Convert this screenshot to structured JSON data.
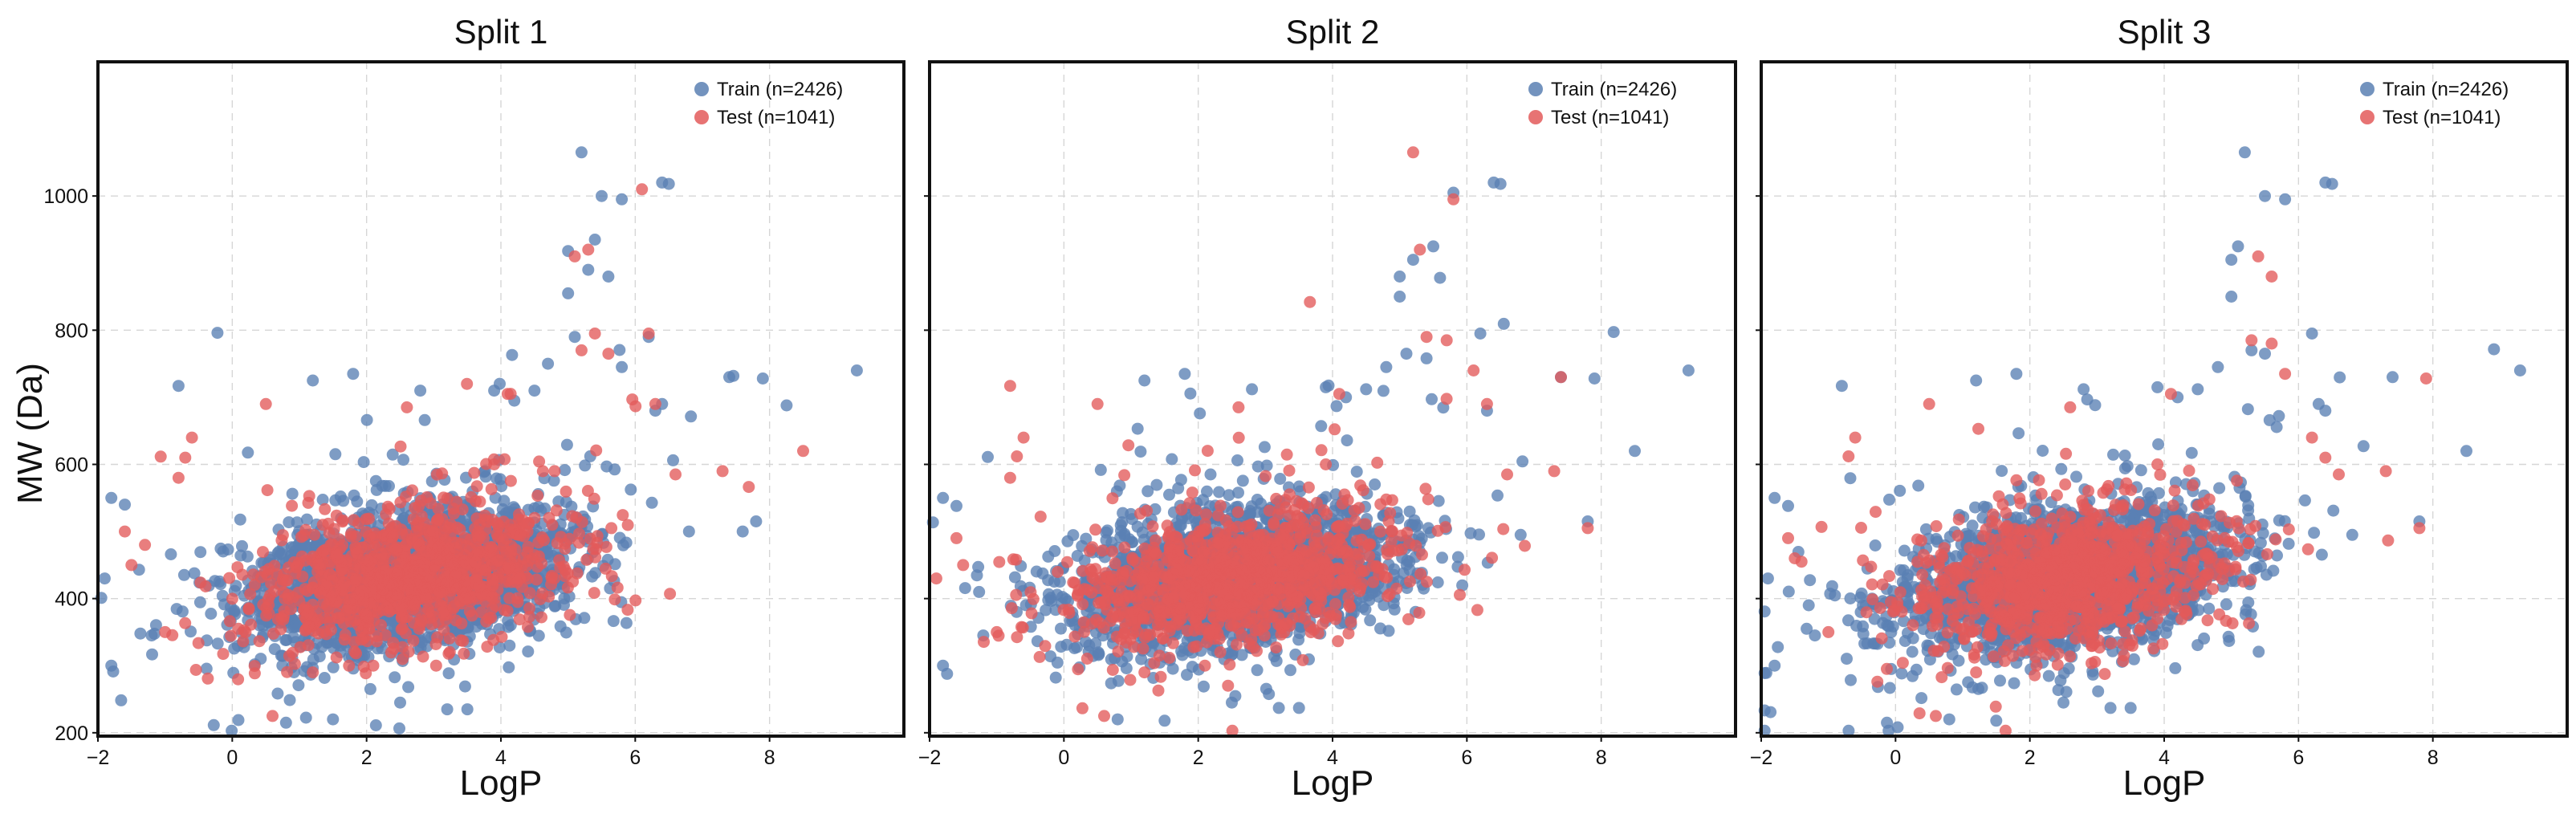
{
  "chart_data": {
    "type": "scatter",
    "figure_ylabel": "MW (Da)",
    "xlabel": "LogP",
    "xlim": [
      -2,
      10
    ],
    "ylim": [
      195,
      1200
    ],
    "xticks": [
      -2,
      0,
      2,
      4,
      6,
      8
    ],
    "yticks": [
      200,
      400,
      600,
      800,
      1000
    ],
    "grid": true,
    "legend_position": "top-right",
    "colors": {
      "Train": "#5a80b3",
      "Test": "#e35a5a"
    },
    "panels": [
      {
        "title": "Split 1",
        "series": [
          {
            "name": "Train (n=2426)",
            "key": "Train",
            "count": 2426,
            "seed": 11,
            "outliers": [
              [
                5.2,
                1065
              ],
              [
                6.4,
                1020
              ],
              [
                6.5,
                1018
              ],
              [
                5.5,
                1000
              ],
              [
                5.8,
                995
              ],
              [
                5.4,
                935
              ],
              [
                5.0,
                918
              ],
              [
                5.3,
                890
              ],
              [
                5.6,
                880
              ],
              [
                5.0,
                855
              ],
              [
                5.1,
                790
              ],
              [
                6.2,
                790
              ],
              [
                4.7,
                750
              ],
              [
                5.8,
                745
              ],
              [
                7.4,
                730
              ],
              [
                7.9,
                728
              ],
              [
                9.3,
                740
              ],
              [
                4.5,
                710
              ],
              [
                3.9,
                710
              ],
              [
                4.2,
                695
              ],
              [
                6.4,
                690
              ],
              [
                6.3,
                680
              ],
              [
                -0.8,
                717
              ],
              [
                1.2,
                725
              ],
              [
                1.8,
                735
              ],
              [
                2.8,
                710
              ],
              [
                -1.8,
                550
              ],
              [
                -1.6,
                540
              ],
              [
                -1.9,
                430
              ],
              [
                -1.8,
                300
              ],
              [
                -1.2,
                345
              ],
              [
                0.8,
                215
              ],
              [
                1.5,
                220
              ],
              [
                2.5,
                245
              ],
              [
                3.2,
                235
              ],
              [
                3.5,
                235
              ],
              [
                7.8,
                515
              ],
              [
                7.6,
                500
              ],
              [
                6.8,
                500
              ]
            ]
          },
          {
            "name": "Test (n=1041)",
            "key": "Test",
            "count": 1041,
            "seed": 23,
            "outliers": [
              [
                6.1,
                1010
              ],
              [
                5.3,
                920
              ],
              [
                5.1,
                910
              ],
              [
                5.4,
                795
              ],
              [
                6.2,
                795
              ],
              [
                5.2,
                770
              ],
              [
                5.6,
                765
              ],
              [
                8.5,
                620
              ],
              [
                7.3,
                590
              ],
              [
                6.6,
                585
              ],
              [
                4.8,
                590
              ],
              [
                0.5,
                690
              ],
              [
                -0.6,
                640
              ],
              [
                -0.7,
                610
              ],
              [
                -0.8,
                580
              ],
              [
                -1.3,
                480
              ],
              [
                -1.6,
                500
              ],
              [
                -1.5,
                450
              ],
              [
                0.6,
                225
              ],
              [
                1.2,
                290
              ],
              [
                2.1,
                300
              ],
              [
                -1.0,
                350
              ],
              [
                2.6,
                685
              ],
              [
                4.1,
                705
              ],
              [
                3.9,
                600
              ],
              [
                6.3,
                690
              ]
            ]
          }
        ]
      },
      {
        "title": "Split 2",
        "series": [
          {
            "name": "Train (n=2426)",
            "key": "Train",
            "count": 2426,
            "seed": 37,
            "outliers": [
              [
                6.4,
                1020
              ],
              [
                6.5,
                1018
              ],
              [
                5.8,
                1005
              ],
              [
                5.5,
                925
              ],
              [
                5.2,
                905
              ],
              [
                5.0,
                880
              ],
              [
                5.6,
                878
              ],
              [
                5.0,
                850
              ],
              [
                5.1,
                765
              ],
              [
                5.4,
                758
              ],
              [
                4.8,
                745
              ],
              [
                6.2,
                795
              ],
              [
                7.4,
                730
              ],
              [
                7.9,
                728
              ],
              [
                9.3,
                740
              ],
              [
                4.5,
                712
              ],
              [
                3.9,
                715
              ],
              [
                4.2,
                700
              ],
              [
                1.2,
                725
              ],
              [
                1.8,
                735
              ],
              [
                2.8,
                712
              ],
              [
                -1.8,
                550
              ],
              [
                -1.6,
                538
              ],
              [
                -1.8,
                300
              ],
              [
                -1.2,
                345
              ],
              [
                0.8,
                220
              ],
              [
                1.5,
                218
              ],
              [
                2.5,
                245
              ],
              [
                3.2,
                237
              ],
              [
                3.5,
                237
              ],
              [
                7.8,
                515
              ],
              [
                8.5,
                620
              ],
              [
                6.8,
                495
              ],
              [
                6.3,
                680
              ]
            ]
          },
          {
            "name": "Test (n=1041)",
            "key": "Test",
            "count": 1041,
            "seed": 41,
            "outliers": [
              [
                5.2,
                1065
              ],
              [
                5.8,
                995
              ],
              [
                5.3,
                920
              ],
              [
                5.4,
                790
              ],
              [
                5.7,
                785
              ],
              [
                6.1,
                740
              ],
              [
                6.3,
                690
              ],
              [
                7.4,
                730
              ],
              [
                7.3,
                590
              ],
              [
                6.6,
                585
              ],
              [
                7.8,
                505
              ],
              [
                0.5,
                690
              ],
              [
                -0.8,
                717
              ],
              [
                -0.6,
                640
              ],
              [
                -0.7,
                612
              ],
              [
                -0.8,
                580
              ],
              [
                -1.9,
                430
              ],
              [
                -1.6,
                490
              ],
              [
                -1.5,
                450
              ],
              [
                0.6,
                225
              ],
              [
                1.2,
                290
              ],
              [
                2.1,
                300
              ],
              [
                2.6,
                685
              ],
              [
                4.1,
                705
              ],
              [
                3.9,
                600
              ],
              [
                -1.0,
                350
              ]
            ]
          }
        ]
      },
      {
        "title": "Split 3",
        "series": [
          {
            "name": "Train (n=2426)",
            "key": "Train",
            "count": 2426,
            "seed": 53,
            "outliers": [
              [
                5.2,
                1065
              ],
              [
                6.4,
                1020
              ],
              [
                6.5,
                1018
              ],
              [
                5.5,
                1000
              ],
              [
                5.8,
                995
              ],
              [
                5.1,
                925
              ],
              [
                5.0,
                905
              ],
              [
                5.0,
                850
              ],
              [
                5.3,
                770
              ],
              [
                5.5,
                765
              ],
              [
                4.8,
                745
              ],
              [
                6.2,
                795
              ],
              [
                7.4,
                730
              ],
              [
                9.3,
                740
              ],
              [
                8.5,
                620
              ],
              [
                4.5,
                712
              ],
              [
                3.9,
                715
              ],
              [
                4.2,
                700
              ],
              [
                6.3,
                690
              ],
              [
                6.4,
                680
              ],
              [
                -0.8,
                717
              ],
              [
                1.2,
                725
              ],
              [
                1.8,
                735
              ],
              [
                2.8,
                712
              ],
              [
                -1.8,
                550
              ],
              [
                -1.6,
                538
              ],
              [
                -1.9,
                430
              ],
              [
                -1.8,
                300
              ],
              [
                -1.2,
                345
              ],
              [
                0.8,
                220
              ],
              [
                1.5,
                218
              ],
              [
                2.5,
                245
              ],
              [
                3.2,
                237
              ],
              [
                3.5,
                237
              ],
              [
                7.8,
                515
              ],
              [
                6.8,
                495
              ]
            ]
          },
          {
            "name": "Test (n=1041)",
            "key": "Test",
            "count": 1041,
            "seed": 67,
            "outliers": [
              [
                5.4,
                910
              ],
              [
                5.6,
                880
              ],
              [
                5.3,
                785
              ],
              [
                5.6,
                780
              ],
              [
                5.8,
                735
              ],
              [
                6.2,
                640
              ],
              [
                7.9,
                728
              ],
              [
                7.3,
                590
              ],
              [
                6.6,
                585
              ],
              [
                0.5,
                690
              ],
              [
                -0.6,
                640
              ],
              [
                -0.7,
                612
              ],
              [
                -1.6,
                490
              ],
              [
                -1.5,
                460
              ],
              [
                -1.4,
                455
              ],
              [
                0.6,
                225
              ],
              [
                1.2,
                290
              ],
              [
                2.1,
                300
              ],
              [
                2.6,
                685
              ],
              [
                4.1,
                705
              ],
              [
                3.9,
                600
              ],
              [
                -1.0,
                350
              ],
              [
                7.8,
                505
              ],
              [
                6.4,
                610
              ]
            ]
          }
        ]
      }
    ]
  }
}
